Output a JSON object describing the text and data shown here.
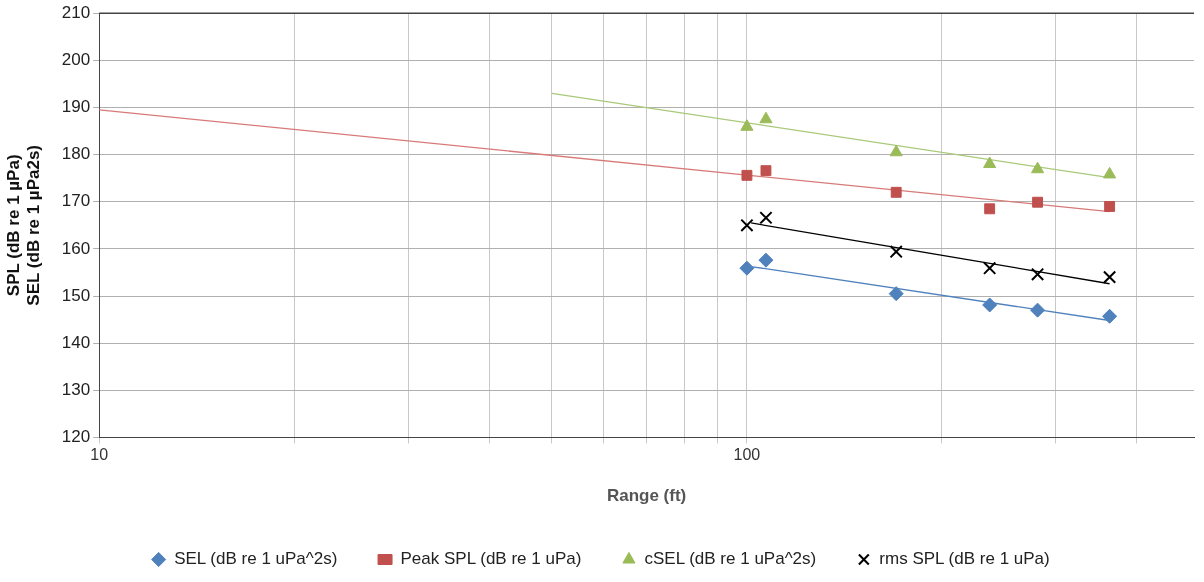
{
  "chart_data": {
    "type": "scatter",
    "xlabel": "Range (ft)",
    "ylabel": "SPL (dB re 1 µPa)\nSEL (dB re 1 µPa2s)",
    "log": "x",
    "xlim": [
      10,
      490
    ],
    "xticks": [
      10,
      {
        "value": 20,
        "label": null
      },
      {
        "value": 30,
        "label": null
      },
      {
        "value": 40,
        "label": null
      },
      {
        "value": 50,
        "label": null
      },
      {
        "value": 60,
        "label": null
      },
      {
        "value": 70,
        "label": null
      },
      {
        "value": 80,
        "label": null
      },
      {
        "value": 90,
        "label": null
      },
      100,
      {
        "value": 200,
        "label": null
      },
      {
        "value": 300,
        "label": null
      },
      {
        "value": 400,
        "label": null
      }
    ],
    "ylim": [
      120,
      210
    ],
    "yticks": [
      120,
      130,
      140,
      150,
      160,
      170,
      180,
      190,
      200,
      210
    ],
    "grid": true,
    "legend": "bottom",
    "series": [
      {
        "name": "SEL (dB re 1 uPa^2s)",
        "color": "#4f81bd",
        "marker": "diamond",
        "x": [
          100,
          107,
          170,
          237,
          281,
          363
        ],
        "values": [
          155.9,
          157.6,
          150.5,
          148.1,
          147.0,
          145.7
        ]
      },
      {
        "name": "Peak SPL (dB re 1 uPa)",
        "color": "#c0504d",
        "marker": "square",
        "x": [
          100,
          107,
          170,
          237,
          281,
          363
        ],
        "values": [
          175.6,
          176.6,
          172.0,
          168.5,
          169.9,
          169.0
        ]
      },
      {
        "name": "cSEL (dB re 1 uPa^2s)",
        "color": "#9bbb59",
        "marker": "triangle",
        "x": [
          100,
          107,
          170,
          237,
          281,
          363
        ],
        "values": [
          185.9,
          187.5,
          180.5,
          178.0,
          176.9,
          175.8
        ]
      },
      {
        "name": "rms SPL (dB re 1 uPa)",
        "color": "#000000",
        "marker": "cross",
        "x": [
          100,
          107,
          170,
          237,
          281,
          363
        ],
        "values": [
          165.0,
          166.6,
          159.4,
          155.9,
          154.6,
          154.0
        ]
      },
      {
        "type": "line",
        "color": "#4f81bd",
        "marker": "none",
        "x": [
          102,
          363
        ],
        "values": [
          156.2,
          144.8
        ]
      },
      {
        "type": "line",
        "color": "#d77a78",
        "marker": "none",
        "x": [
          10,
          363
        ],
        "values": [
          189.5,
          167.9
        ]
      },
      {
        "type": "line",
        "color": "#a9c97a",
        "marker": "none",
        "x": [
          50,
          363
        ],
        "values": [
          193.0,
          175.1
        ]
      },
      {
        "type": "line",
        "color": "#000000",
        "marker": "none",
        "x": [
          101.5,
          363
        ],
        "values": [
          165.5,
          152.6
        ]
      }
    ]
  }
}
